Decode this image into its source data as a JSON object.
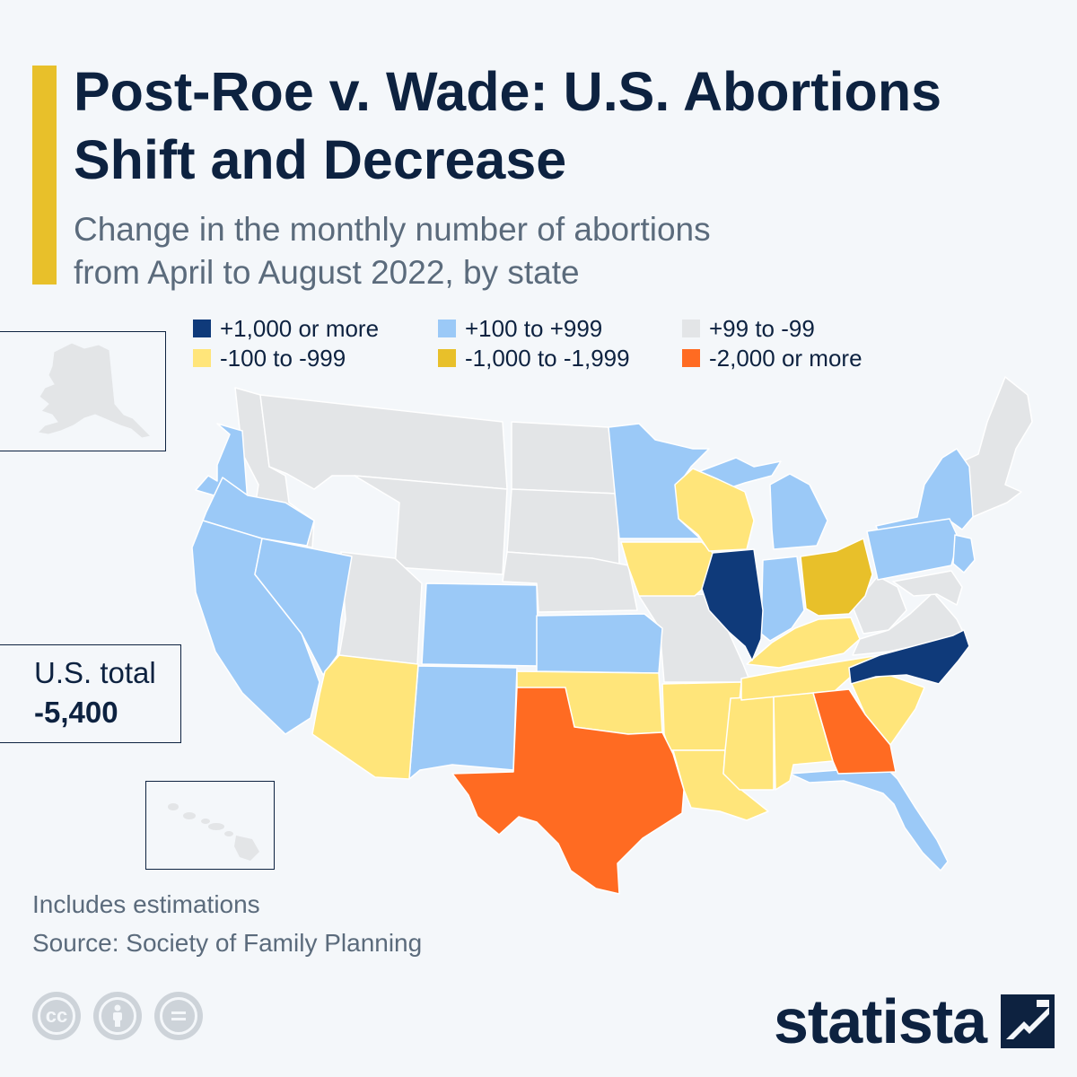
{
  "header": {
    "title_line1": "Post-Roe v. Wade: U.S. Abortions",
    "title_line2": "Shift and Decrease",
    "subtitle_line1": "Change in the monthly number of abortions",
    "subtitle_line2": "from April to August 2022, by state"
  },
  "legend": [
    {
      "label": "+1,000 or more",
      "color": "#0f3a7a"
    },
    {
      "label": "+100 to +999",
      "color": "#9bc9f7"
    },
    {
      "label": "+99 to -99",
      "color": "#e3e5e7"
    },
    {
      "label": "-100 to -999",
      "color": "#ffe57a"
    },
    {
      "label": "-1,000 to -1,999",
      "color": "#e8c02a"
    },
    {
      "label": "-2,000 or more",
      "color": "#ff6b22"
    }
  ],
  "total": {
    "label": "U.S. total",
    "value": "-5,400"
  },
  "notes": {
    "estimations": "Includes estimations",
    "source": "Source: Society of Family Planning"
  },
  "brand": {
    "name": "statista"
  },
  "icons": [
    "cc-license-icon",
    "attribution-icon",
    "no-derivatives-icon"
  ],
  "map_categories": {
    "+1,000 or more": [
      "Illinois",
      "North Carolina"
    ],
    "+100 to +999": [
      "Washington",
      "Oregon",
      "California",
      "Nevada",
      "Colorado",
      "New Mexico",
      "Kansas",
      "Minnesota",
      "Michigan",
      "Indiana",
      "Florida",
      "New York",
      "Pennsylvania",
      "New Jersey"
    ],
    "+99 to -99": [
      "Idaho",
      "Montana",
      "Wyoming",
      "Utah",
      "North Dakota",
      "South Dakota",
      "Nebraska",
      "Missouri",
      "West Virginia",
      "Virginia",
      "Maryland",
      "Delaware",
      "Connecticut",
      "Rhode Island",
      "Massachusetts",
      "Vermont",
      "New Hampshire",
      "Maine",
      "Alaska",
      "Hawaii"
    ],
    "-100 to -999": [
      "Arizona",
      "Oklahoma",
      "Arkansas",
      "Louisiana",
      "Mississippi",
      "Alabama",
      "Tennessee",
      "Kentucky",
      "South Carolina",
      "Iowa",
      "Wisconsin"
    ],
    "-1,000 to -1,999": [
      "Ohio"
    ],
    "-2,000 or more": [
      "Texas",
      "Georgia"
    ]
  }
}
